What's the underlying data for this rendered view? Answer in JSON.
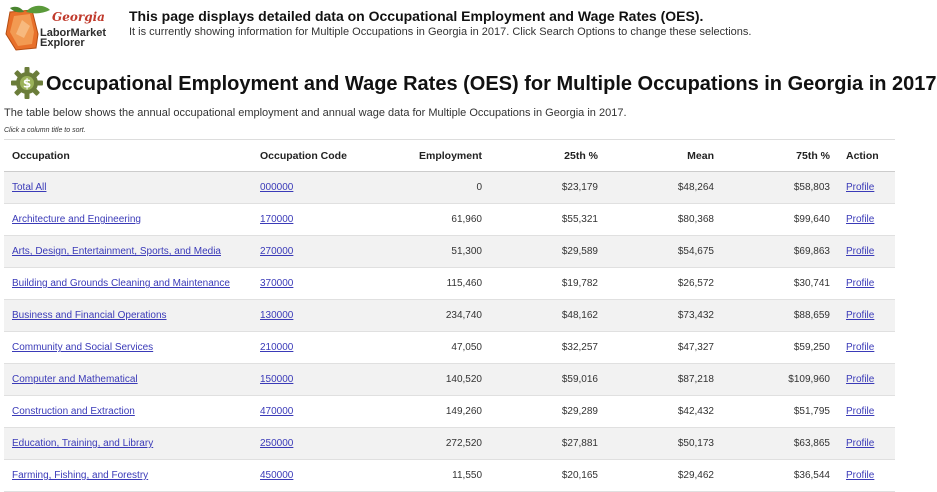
{
  "logo": {
    "state": "Georgia",
    "line1": "LaborMarket",
    "line2": "Explorer"
  },
  "header": {
    "title": "This page displays detailed data on Occupational Employment and Wage Rates (OES).",
    "subtitle": "It is currently showing information for Multiple Occupations in Georgia in 2017. Click Search Options to change these selections."
  },
  "page": {
    "title": "Occupational Employment and Wage Rates (OES) for Multiple Occupations in Georgia in 2017",
    "description": "The table below shows the annual occupational employment and annual wage data for Multiple Occupations in Georgia in 2017.",
    "sort_hint": "Click a column title to sort."
  },
  "table": {
    "columns": [
      "Occupation",
      "Occupation Code",
      "Employment",
      "25th %",
      "Mean",
      "75th %",
      "Action"
    ],
    "rows": [
      {
        "occupation": "Total All",
        "code": "000000",
        "employment": "0",
        "p25": "$23,179",
        "mean": "$48,264",
        "p75": "$58,803",
        "action": "Profile"
      },
      {
        "occupation": "Architecture and Engineering",
        "code": "170000",
        "employment": "61,960",
        "p25": "$55,321",
        "mean": "$80,368",
        "p75": "$99,640",
        "action": "Profile"
      },
      {
        "occupation": "Arts, Design, Entertainment, Sports, and Media",
        "code": "270000",
        "employment": "51,300",
        "p25": "$29,589",
        "mean": "$54,675",
        "p75": "$69,863",
        "action": "Profile"
      },
      {
        "occupation": "Building and Grounds Cleaning and Maintenance",
        "code": "370000",
        "employment": "115,460",
        "p25": "$19,782",
        "mean": "$26,572",
        "p75": "$30,741",
        "action": "Profile"
      },
      {
        "occupation": "Business and Financial Operations",
        "code": "130000",
        "employment": "234,740",
        "p25": "$48,162",
        "mean": "$73,432",
        "p75": "$88,659",
        "action": "Profile"
      },
      {
        "occupation": "Community and Social Services",
        "code": "210000",
        "employment": "47,050",
        "p25": "$32,257",
        "mean": "$47,327",
        "p75": "$59,250",
        "action": "Profile"
      },
      {
        "occupation": "Computer and Mathematical",
        "code": "150000",
        "employment": "140,520",
        "p25": "$59,016",
        "mean": "$87,218",
        "p75": "$109,960",
        "action": "Profile"
      },
      {
        "occupation": "Construction and Extraction",
        "code": "470000",
        "employment": "149,260",
        "p25": "$29,289",
        "mean": "$42,432",
        "p75": "$51,795",
        "action": "Profile"
      },
      {
        "occupation": "Education, Training, and Library",
        "code": "250000",
        "employment": "272,520",
        "p25": "$27,881",
        "mean": "$50,173",
        "p75": "$63,865",
        "action": "Profile"
      },
      {
        "occupation": "Farming, Fishing, and Forestry",
        "code": "450000",
        "employment": "11,550",
        "p25": "$20,165",
        "mean": "$29,462",
        "p75": "$36,544",
        "action": "Profile"
      }
    ]
  },
  "colors": {
    "link": "#3a3ab8",
    "row_alt": "#f2f2f2",
    "logo_orange": "#e8702a",
    "logo_green": "#5a9a3a"
  }
}
